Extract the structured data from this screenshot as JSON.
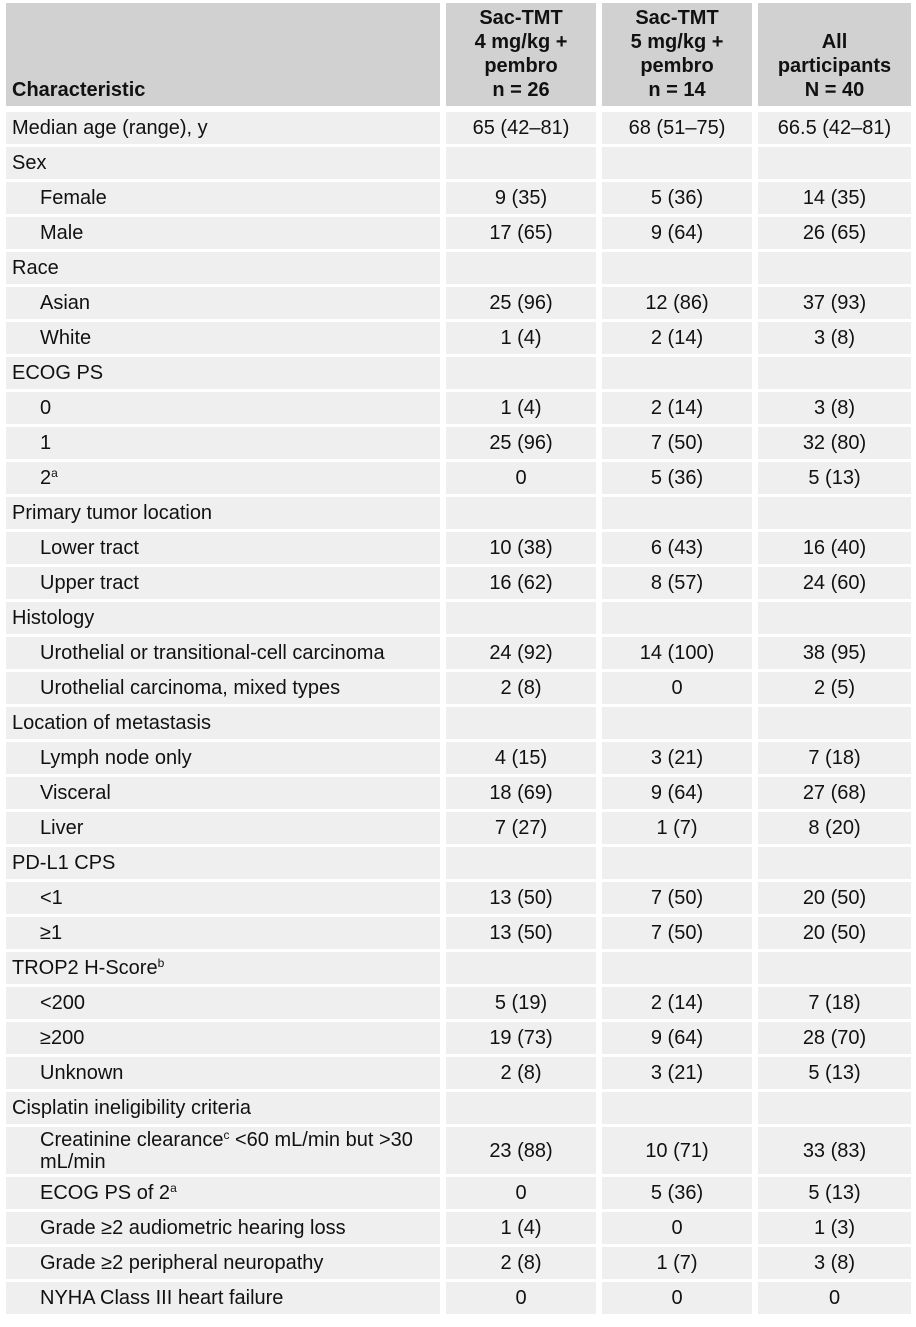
{
  "header": {
    "characteristic": "Characteristic",
    "col1": [
      "Sac-TMT",
      "4 mg/kg +",
      "pembro",
      "n = 26"
    ],
    "col2": [
      "Sac-TMT",
      "5 mg/kg +",
      "pembro",
      "n = 14"
    ],
    "col3": [
      "All",
      "participants",
      "N = 40"
    ]
  },
  "rows": [
    {
      "label": "Median age (range), y",
      "sup": "",
      "after": "",
      "v1": "65 (42–81)",
      "v2": "68 (51–75)",
      "v3": "66.5 (42–81)",
      "indent": false
    },
    {
      "label": "Sex",
      "sup": "",
      "after": "",
      "v1": "",
      "v2": "",
      "v3": "",
      "indent": false
    },
    {
      "label": "Female",
      "sup": "",
      "after": "",
      "v1": "9 (35)",
      "v2": "5 (36)",
      "v3": "14 (35)",
      "indent": true
    },
    {
      "label": "Male",
      "sup": "",
      "after": "",
      "v1": "17 (65)",
      "v2": "9 (64)",
      "v3": "26 (65)",
      "indent": true
    },
    {
      "label": "Race",
      "sup": "",
      "after": "",
      "v1": "",
      "v2": "",
      "v3": "",
      "indent": false
    },
    {
      "label": "Asian",
      "sup": "",
      "after": "",
      "v1": "25 (96)",
      "v2": "12 (86)",
      "v3": "37 (93)",
      "indent": true
    },
    {
      "label": "White",
      "sup": "",
      "after": "",
      "v1": "1 (4)",
      "v2": "2 (14)",
      "v3": "3 (8)",
      "indent": true
    },
    {
      "label": "ECOG PS",
      "sup": "",
      "after": "",
      "v1": "",
      "v2": "",
      "v3": "",
      "indent": false
    },
    {
      "label": "0",
      "sup": "",
      "after": "",
      "v1": "1 (4)",
      "v2": "2 (14)",
      "v3": "3 (8)",
      "indent": true
    },
    {
      "label": "1",
      "sup": "",
      "after": "",
      "v1": "25 (96)",
      "v2": "7 (50)",
      "v3": "32 (80)",
      "indent": true
    },
    {
      "label": "2",
      "sup": "a",
      "after": "",
      "v1": "0",
      "v2": "5 (36)",
      "v3": "5 (13)",
      "indent": true
    },
    {
      "label": "Primary tumor location",
      "sup": "",
      "after": "",
      "v1": "",
      "v2": "",
      "v3": "",
      "indent": false
    },
    {
      "label": "Lower tract",
      "sup": "",
      "after": "",
      "v1": "10 (38)",
      "v2": "6 (43)",
      "v3": "16 (40)",
      "indent": true
    },
    {
      "label": "Upper tract",
      "sup": "",
      "after": "",
      "v1": "16 (62)",
      "v2": "8 (57)",
      "v3": "24 (60)",
      "indent": true
    },
    {
      "label": "Histology",
      "sup": "",
      "after": "",
      "v1": "",
      "v2": "",
      "v3": "",
      "indent": false
    },
    {
      "label": "Urothelial or transitional-cell carcinoma",
      "sup": "",
      "after": "",
      "v1": "24 (92)",
      "v2": "14 (100)",
      "v3": "38 (95)",
      "indent": true
    },
    {
      "label": "Urothelial carcinoma, mixed types",
      "sup": "",
      "after": "",
      "v1": "2 (8)",
      "v2": "0",
      "v3": "2 (5)",
      "indent": true
    },
    {
      "label": "Location of metastasis",
      "sup": "",
      "after": "",
      "v1": "",
      "v2": "",
      "v3": "",
      "indent": false
    },
    {
      "label": "Lymph node only",
      "sup": "",
      "after": "",
      "v1": "4 (15)",
      "v2": "3 (21)",
      "v3": "7 (18)",
      "indent": true
    },
    {
      "label": "Visceral",
      "sup": "",
      "after": "",
      "v1": "18 (69)",
      "v2": "9 (64)",
      "v3": "27 (68)",
      "indent": true
    },
    {
      "label": "Liver",
      "sup": "",
      "after": "",
      "v1": "7 (27)",
      "v2": "1 (7)",
      "v3": "8 (20)",
      "indent": true
    },
    {
      "label": "PD-L1 CPS",
      "sup": "",
      "after": "",
      "v1": "",
      "v2": "",
      "v3": "",
      "indent": false
    },
    {
      "label": "<1",
      "sup": "",
      "after": "",
      "v1": "13 (50)",
      "v2": "7 (50)",
      "v3": "20 (50)",
      "indent": true
    },
    {
      "label": "≥1",
      "sup": "",
      "after": "",
      "v1": "13 (50)",
      "v2": "7 (50)",
      "v3": "20 (50)",
      "indent": true
    },
    {
      "label": "TROP2 H-Score",
      "sup": "b",
      "after": "",
      "v1": "",
      "v2": "",
      "v3": "",
      "indent": false
    },
    {
      "label": "<200",
      "sup": "",
      "after": "",
      "v1": "5 (19)",
      "v2": "2 (14)",
      "v3": "7 (18)",
      "indent": true
    },
    {
      "label": "≥200",
      "sup": "",
      "after": "",
      "v1": "19 (73)",
      "v2": "9 (64)",
      "v3": "28 (70)",
      "indent": true
    },
    {
      "label": "Unknown",
      "sup": "",
      "after": "",
      "v1": "2 (8)",
      "v2": "3 (21)",
      "v3": "5 (13)",
      "indent": true
    },
    {
      "label": "Cisplatin ineligibility criteria",
      "sup": "",
      "after": "",
      "v1": "",
      "v2": "",
      "v3": "",
      "indent": false
    },
    {
      "label": "Creatinine clearance",
      "sup": "c",
      "after": " <60 mL/min but >30 mL/min",
      "v1": "23 (88)",
      "v2": "10 (71)",
      "v3": "33 (83)",
      "indent": true,
      "tall": true
    },
    {
      "label": "ECOG PS of 2",
      "sup": "a",
      "after": "",
      "v1": "0",
      "v2": "5 (36)",
      "v3": "5 (13)",
      "indent": true
    },
    {
      "label": "Grade ≥2 audiometric hearing loss",
      "sup": "",
      "after": "",
      "v1": "1 (4)",
      "v2": "0",
      "v3": "1 (3)",
      "indent": true
    },
    {
      "label": "Grade ≥2 peripheral neuropathy",
      "sup": "",
      "after": "",
      "v1": "2 (8)",
      "v2": "1 (7)",
      "v3": "3 (8)",
      "indent": true
    },
    {
      "label": "NYHA Class III heart failure",
      "sup": "",
      "after": "",
      "v1": "0",
      "v2": "0",
      "v3": "0",
      "indent": true
    }
  ]
}
